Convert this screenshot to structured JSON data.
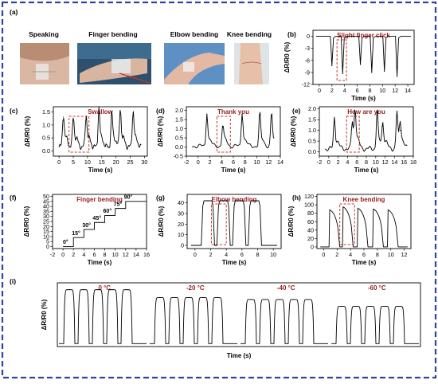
{
  "figure": {
    "panel_a": {
      "letter": "(a)",
      "photos": [
        {
          "label": "Speaking"
        },
        {
          "label": "Finger bending"
        },
        {
          "label": "Elbow bending"
        },
        {
          "label": "Knee bending"
        }
      ]
    },
    "colors": {
      "frame": "#2f44a6",
      "panel_title": "#9b1c1c",
      "dashed_box": "#c0392b",
      "trace": "#000000"
    }
  },
  "chart_data": [
    {
      "panel": "b",
      "letter": "(b)",
      "type": "line",
      "title": "Slight finger click",
      "xlabel": "Time (s)",
      "ylabel": "ΔR/R0 (%)",
      "xlim": [
        -1,
        15
      ],
      "ylim": [
        -12,
        1.5
      ],
      "xticks": [
        "0",
        "2",
        "4",
        "6",
        "8",
        "10",
        "12",
        "14"
      ],
      "yticks": [
        "0",
        "-3",
        "-6",
        "-9",
        "-12"
      ],
      "x_positions": [
        0.2,
        3.7,
        6.5,
        8.3,
        10.3,
        12.3
      ],
      "values": [
        0,
        0,
        0,
        0,
        0,
        0
      ],
      "peaks": [
        -7.3,
        -9.3,
        -7.0,
        -9.0,
        -8.7,
        -10.0
      ],
      "highlight_x": [
        2.8,
        4.3
      ]
    },
    {
      "panel": "c",
      "letter": "(c)",
      "type": "line",
      "title": "Swallow",
      "xlabel": "Time (s)",
      "ylabel": "ΔR/R0 (%)",
      "xlim": [
        -2,
        31
      ],
      "ylim": [
        -0.2,
        1.7
      ],
      "xticks": [
        "0",
        "5",
        "10",
        "15",
        "20",
        "25",
        "30"
      ],
      "yticks": [
        "0.0",
        "0.5",
        "1.0",
        "1.5"
      ],
      "x_positions": [
        1.5,
        5.0,
        9.5,
        14.0,
        18.5,
        21.5,
        26.0
      ],
      "peaks": [
        1.3,
        1.2,
        1.3,
        1.55,
        1.4,
        1.55,
        1.45
      ],
      "highlight_x": [
        3.5,
        10.5
      ]
    },
    {
      "panel": "d",
      "letter": "(d)",
      "type": "line",
      "title": "Thank you",
      "xlabel": "Time (s)",
      "ylabel": "ΔR/R0 (%)",
      "xlim": [
        -2,
        14
      ],
      "ylim": [
        -0.5,
        2.2
      ],
      "xticks": [
        "-2",
        "0",
        "2",
        "4",
        "6",
        "8",
        "10",
        "12",
        "14"
      ],
      "yticks": [
        "-0.5",
        "0.0",
        "0.5",
        "1.0",
        "1.5",
        "2.0"
      ],
      "x_positions": [
        1.5,
        4.2,
        7.5,
        10.5,
        12.5
      ],
      "peaks": [
        1.8,
        1.1,
        1.8,
        1.75,
        1.75
      ],
      "highlight_x": [
        3.2,
        5.5
      ]
    },
    {
      "panel": "e",
      "letter": "(e)",
      "type": "line",
      "title": "How are you",
      "xlabel": "Time (s)",
      "ylabel": "ΔR/R0 (%)",
      "xlim": [
        -2,
        18
      ],
      "ylim": [
        -0.2,
        2.1
      ],
      "xticks": [
        "-2",
        "0",
        "2",
        "4",
        "6",
        "8",
        "10",
        "12",
        "14",
        "16",
        "18"
      ],
      "yticks": [
        "0.0",
        "0.5",
        "1.0",
        "1.5",
        "2.0"
      ],
      "x_positions": [
        1.2,
        5.0,
        5.6,
        10.3,
        11.5,
        14.5,
        15.2
      ],
      "peaks": [
        1.5,
        1.3,
        1.65,
        1.85,
        1.2,
        1.75,
        1.0
      ],
      "highlight_x": [
        3.8,
        6.5
      ]
    },
    {
      "panel": "f",
      "letter": "(f)",
      "type": "line",
      "title": "Finger bending",
      "xlabel": "Time (s)",
      "ylabel": "ΔR/R0 (%)",
      "xlim": [
        -2,
        16
      ],
      "ylim": [
        -2,
        52
      ],
      "xticks": [
        "-2",
        "0",
        "2",
        "4",
        "6",
        "8",
        "10",
        "12",
        "14",
        "16"
      ],
      "yticks": [
        "0",
        "5",
        "10",
        "15",
        "20",
        "25",
        "30",
        "35",
        "40",
        "45",
        "50"
      ],
      "steps_x": [
        0,
        2,
        4,
        6,
        8,
        10,
        12,
        14,
        16
      ],
      "steps_y": [
        0,
        9,
        17,
        24,
        31,
        38,
        45,
        45,
        45
      ],
      "step_labels": [
        "0°",
        "15°",
        "30°",
        "45°",
        "60°",
        "75°",
        "90°"
      ],
      "step_label_x": [
        0.5,
        2.5,
        4.5,
        6.5,
        8.5,
        10.5,
        12.5
      ],
      "step_label_y": [
        1,
        10,
        18,
        25,
        32,
        39,
        46
      ]
    },
    {
      "panel": "g",
      "letter": "(g)",
      "type": "line",
      "title": "Elbow bending",
      "xlabel": "Time (s)",
      "ylabel": "ΔR/R0 (%)",
      "xlim": [
        -1,
        11
      ],
      "ylim": [
        -3,
        48
      ],
      "xticks": [
        "0",
        "2",
        "4",
        "6",
        "8",
        "10"
      ],
      "yticks": [
        "0",
        "10",
        "20",
        "30",
        "40"
      ],
      "x_positions": [
        1.0,
        3.0,
        5.0,
        7.0
      ],
      "widths": [
        1.3,
        1.3,
        1.3,
        1.3
      ],
      "peaks": [
        42,
        42,
        42,
        42
      ],
      "highlight_x": [
        2.1,
        4.0
      ]
    },
    {
      "panel": "h",
      "letter": "(h)",
      "type": "line",
      "title": "Knee bending",
      "xlabel": "Time (s)",
      "ylabel": "ΔR/R0 (%)",
      "xlim": [
        -1,
        13
      ],
      "ylim": [
        -4,
        125
      ],
      "xticks": [
        "0",
        "2",
        "4",
        "6",
        "8",
        "10",
        "12"
      ],
      "yticks": [
        "0",
        "20",
        "40",
        "60",
        "80",
        "100",
        "120"
      ],
      "x_positions": [
        0.8,
        2.8,
        5.0,
        7.3,
        9.5
      ],
      "peaks": [
        88,
        95,
        92,
        90,
        88
      ],
      "highlight_x": [
        2.4,
        4.6
      ]
    },
    {
      "panel": "i",
      "letter": "(i)",
      "type": "line",
      "xlabel": "Time (s)",
      "ylabel": "ΔR/R0 (%)",
      "groups": [
        {
          "temperature": "0 °C",
          "count": 5,
          "peak": 55
        },
        {
          "temperature": "-20 °C",
          "count": 5,
          "peak": 47
        },
        {
          "temperature": "-40 °C",
          "count": 5,
          "peak": 45
        },
        {
          "temperature": "-60 °C",
          "count": 5,
          "peak": 38
        }
      ],
      "ylim": [
        -3,
        62
      ]
    }
  ]
}
